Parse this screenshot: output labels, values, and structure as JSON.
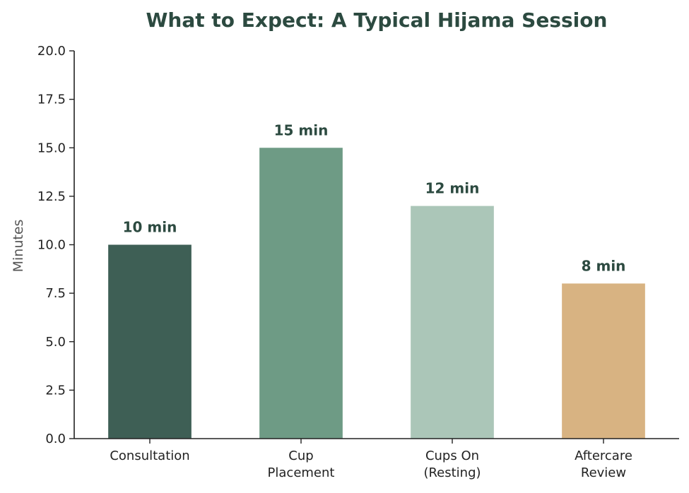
{
  "chart_data": {
    "type": "bar",
    "title": "What to Expect: A Typical Hijama Session",
    "xlabel": "",
    "ylabel": "Minutes",
    "categories": [
      [
        "Consultation"
      ],
      [
        "Cup",
        "Placement"
      ],
      [
        "Cups On",
        "(Resting)"
      ],
      [
        "Aftercare",
        "Review"
      ]
    ],
    "values": [
      10,
      15,
      12,
      8
    ],
    "data_labels": [
      "10 min",
      "15 min",
      "12 min",
      "8 min"
    ],
    "bar_colors": [
      "#3e5f55",
      "#6e9b85",
      "#abc6b8",
      "#d8b382"
    ],
    "ylim": [
      0,
      20
    ],
    "yticks": [
      "0.0",
      "2.5",
      "5.0",
      "7.5",
      "10.0",
      "12.5",
      "15.0",
      "17.5",
      "20.0"
    ],
    "grid": false,
    "legend": "none"
  },
  "colors": {
    "title": "#2c4a40",
    "data_label": "#2c4a40",
    "axis": "#222222"
  }
}
